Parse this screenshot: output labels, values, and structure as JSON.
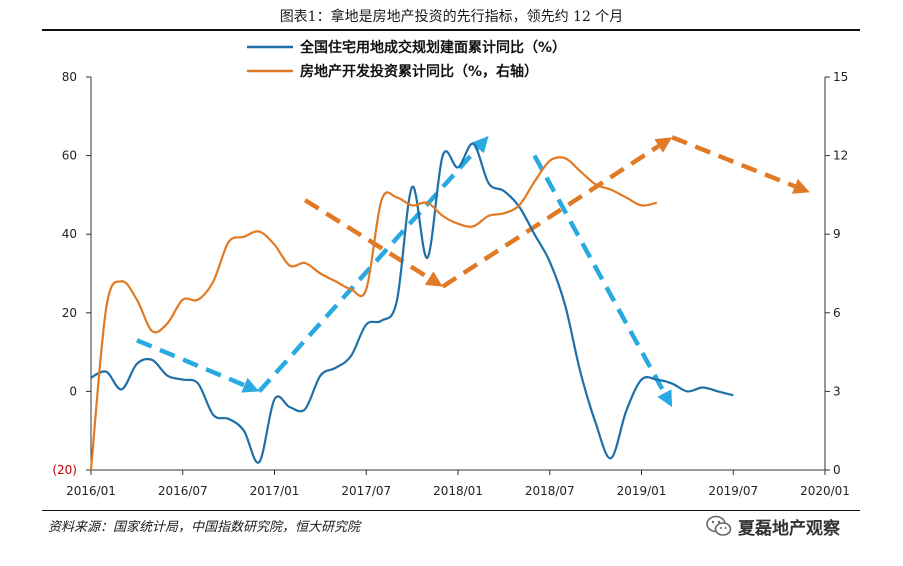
{
  "figure": {
    "title": "图表1：拿地是房地产投资的先行指标，领先约 12 个月",
    "source": "资料来源：国家统计局，中国指数研究院，恒大研究院",
    "watermark": "夏磊地产观察"
  },
  "chart_data": {
    "type": "line",
    "x_ticks": [
      "2016/01",
      "2016/07",
      "2017/01",
      "2017/07",
      "2018/01",
      "2018/07",
      "2019/01",
      "2019/07",
      "2020/01"
    ],
    "left_axis": {
      "ticks": [
        "80",
        "60",
        "40",
        "20",
        "0",
        "(20)"
      ],
      "range": [
        -20,
        80
      ]
    },
    "right_axis": {
      "ticks": [
        "15",
        "12",
        "9",
        "6",
        "3",
        "0"
      ],
      "range": [
        0,
        15
      ]
    },
    "grid": false,
    "legend_position": "top",
    "series": [
      {
        "name": "全国住宅用地成交规划建面累计同比（%）",
        "axis": "left",
        "color": "#1f6fa8",
        "points": [
          [
            "2016/01",
            3.5
          ],
          [
            "2016/02",
            5
          ],
          [
            "2016/03",
            0.5
          ],
          [
            "2016/04",
            7
          ],
          [
            "2016/05",
            8
          ],
          [
            "2016/06",
            4
          ],
          [
            "2016/07",
            3
          ],
          [
            "2016/08",
            2
          ],
          [
            "2016/09",
            -6
          ],
          [
            "2016/10",
            -7
          ],
          [
            "2016/11",
            -10
          ],
          [
            "2016/12",
            -18
          ],
          [
            "2017/01",
            -2
          ],
          [
            "2017/02",
            -4
          ],
          [
            "2017/03",
            -4.5
          ],
          [
            "2017/04",
            4
          ],
          [
            "2017/05",
            6
          ],
          [
            "2017/06",
            9
          ],
          [
            "2017/07",
            17
          ],
          [
            "2017/08",
            18
          ],
          [
            "2017/09",
            23
          ],
          [
            "2017/10",
            52
          ],
          [
            "2017/11",
            34
          ],
          [
            "2017/12",
            60
          ],
          [
            "2018/01",
            57
          ],
          [
            "2018/02",
            63
          ],
          [
            "2018/03",
            53
          ],
          [
            "2018/04",
            51
          ],
          [
            "2018/05",
            47
          ],
          [
            "2018/06",
            40
          ],
          [
            "2018/07",
            33
          ],
          [
            "2018/08",
            22
          ],
          [
            "2018/09",
            5
          ],
          [
            "2018/10",
            -8
          ],
          [
            "2018/11",
            -17
          ],
          [
            "2018/12",
            -5
          ],
          [
            "2019/01",
            3
          ],
          [
            "2019/02",
            3
          ],
          [
            "2019/03",
            2
          ],
          [
            "2019/04",
            0
          ],
          [
            "2019/05",
            1
          ],
          [
            "2019/06",
            0
          ],
          [
            "2019/07",
            -1
          ]
        ]
      },
      {
        "name": "房地产开发投资累计同比（%，右轴）",
        "axis": "right",
        "color": "#e07a25",
        "points": [
          [
            "2016/01",
            0
          ],
          [
            "2016/02",
            6.2
          ],
          [
            "2016/03",
            7.2
          ],
          [
            "2016/04",
            6.5
          ],
          [
            "2016/05",
            5.3
          ],
          [
            "2016/06",
            5.6
          ],
          [
            "2016/07",
            6.5
          ],
          [
            "2016/08",
            6.5
          ],
          [
            "2016/09",
            7.2
          ],
          [
            "2016/10",
            8.7
          ],
          [
            "2016/11",
            8.9
          ],
          [
            "2016/12",
            9.1
          ],
          [
            "2017/01",
            8.6
          ],
          [
            "2017/02",
            7.8
          ],
          [
            "2017/03",
            7.9
          ],
          [
            "2017/04",
            7.5
          ],
          [
            "2017/05",
            7.2
          ],
          [
            "2017/06",
            6.9
          ],
          [
            "2017/07",
            6.9
          ],
          [
            "2017/08",
            10.3
          ],
          [
            "2017/09",
            10.4
          ],
          [
            "2017/10",
            10.1
          ],
          [
            "2017/11",
            10.2
          ],
          [
            "2017/12",
            9.7
          ],
          [
            "2018/01",
            9.4
          ],
          [
            "2018/02",
            9.3
          ],
          [
            "2018/03",
            9.7
          ],
          [
            "2018/04",
            9.8
          ],
          [
            "2018/05",
            10.1
          ],
          [
            "2018/06",
            11.0
          ],
          [
            "2018/07",
            11.8
          ],
          [
            "2018/08",
            11.9
          ],
          [
            "2018/09",
            11.4
          ],
          [
            "2018/10",
            10.9
          ],
          [
            "2018/11",
            10.7
          ],
          [
            "2018/12",
            10.4
          ],
          [
            "2019/01",
            10.1
          ],
          [
            "2019/02",
            10.2
          ]
        ]
      }
    ],
    "arrows": [
      {
        "color": "#29a9e1",
        "from": [
          "2016/04",
          13
        ],
        "to": [
          "2016/12",
          0
        ]
      },
      {
        "color": "#29a9e1",
        "from": [
          "2016/12",
          0
        ],
        "to": [
          "2018/03",
          65
        ]
      },
      {
        "color": "#29a9e1",
        "from": [
          "2018/06",
          60
        ],
        "to": [
          "2019/03",
          -4
        ]
      },
      {
        "color": "#e07a25",
        "from": [
          "2017/03",
          10.3
        ],
        "to": [
          "2017/12",
          7
        ]
      },
      {
        "color": "#e07a25",
        "from": [
          "2017/12",
          7
        ],
        "to": [
          "2019/03",
          12.7
        ]
      },
      {
        "color": "#e07a25",
        "from": [
          "2019/03",
          12.7
        ],
        "to": [
          "2019/12",
          10.6
        ]
      }
    ]
  }
}
